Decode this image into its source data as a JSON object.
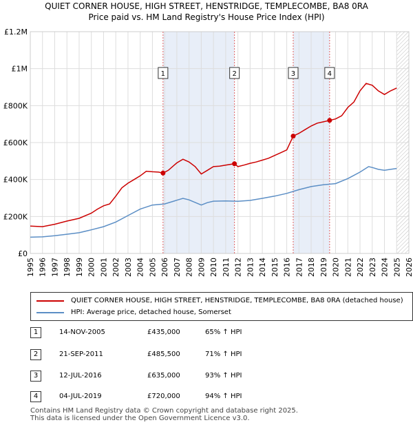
{
  "chart_data": {
    "type": "line",
    "title": "QUIET CORNER HOUSE, HIGH STREET, HENSTRIDGE, TEMPLECOMBE, BA8 0RA",
    "subtitle": "Price paid vs. HM Land Registry's House Price Index (HPI)",
    "xlim": [
      1995,
      2026
    ],
    "ylim": [
      0,
      1200000
    ],
    "x_ticks": [
      "1995",
      "1996",
      "1997",
      "1998",
      "1999",
      "2000",
      "2001",
      "2002",
      "2003",
      "2004",
      "2005",
      "2006",
      "2007",
      "2008",
      "2009",
      "2010",
      "2011",
      "2012",
      "2013",
      "2014",
      "2015",
      "2016",
      "2017",
      "2018",
      "2019",
      "2020",
      "2021",
      "2022",
      "2023",
      "2024",
      "2025",
      "2026"
    ],
    "y_ticks": [
      {
        "value": 0,
        "label": "£0"
      },
      {
        "value": 200000,
        "label": "£200K"
      },
      {
        "value": 400000,
        "label": "£400K"
      },
      {
        "value": 600000,
        "label": "£600K"
      },
      {
        "value": 800000,
        "label": "£800K"
      },
      {
        "value": 1000000,
        "label": "£1M"
      },
      {
        "value": 1200000,
        "label": "£1.2M"
      }
    ],
    "grid": true,
    "forecast_from": 2025.0,
    "series": [
      {
        "name": "QUIET CORNER HOUSE, HIGH STREET, HENSTRIDGE, TEMPLECOMBE, BA8 0RA (detached house)",
        "color": "#cc0000",
        "points": [
          [
            1995.0,
            148000
          ],
          [
            1996.0,
            145000
          ],
          [
            1997.0,
            158000
          ],
          [
            1998.0,
            175000
          ],
          [
            1999.0,
            190000
          ],
          [
            2000.0,
            218000
          ],
          [
            2000.5,
            240000
          ],
          [
            2001.0,
            258000
          ],
          [
            2001.5,
            268000
          ],
          [
            2002.0,
            310000
          ],
          [
            2002.5,
            355000
          ],
          [
            2003.0,
            380000
          ],
          [
            2003.5,
            400000
          ],
          [
            2004.0,
            420000
          ],
          [
            2004.5,
            445000
          ],
          [
            2005.0,
            442000
          ],
          [
            2005.5,
            440000
          ],
          [
            2005.87,
            435000
          ],
          [
            2006.3,
            450000
          ],
          [
            2007.0,
            490000
          ],
          [
            2007.5,
            510000
          ],
          [
            2008.0,
            495000
          ],
          [
            2008.5,
            470000
          ],
          [
            2009.0,
            430000
          ],
          [
            2009.5,
            450000
          ],
          [
            2010.0,
            470000
          ],
          [
            2010.5,
            472000
          ],
          [
            2011.0,
            478000
          ],
          [
            2011.72,
            485500
          ],
          [
            2012.0,
            470000
          ],
          [
            2012.5,
            478000
          ],
          [
            2013.0,
            488000
          ],
          [
            2013.5,
            495000
          ],
          [
            2014.0,
            505000
          ],
          [
            2014.5,
            515000
          ],
          [
            2015.0,
            530000
          ],
          [
            2015.5,
            545000
          ],
          [
            2016.0,
            560000
          ],
          [
            2016.53,
            635000
          ],
          [
            2017.0,
            650000
          ],
          [
            2017.5,
            670000
          ],
          [
            2018.0,
            690000
          ],
          [
            2018.5,
            705000
          ],
          [
            2019.0,
            712000
          ],
          [
            2019.51,
            720000
          ],
          [
            2020.0,
            728000
          ],
          [
            2020.5,
            745000
          ],
          [
            2021.0,
            790000
          ],
          [
            2021.5,
            820000
          ],
          [
            2022.0,
            880000
          ],
          [
            2022.5,
            920000
          ],
          [
            2023.0,
            910000
          ],
          [
            2023.5,
            880000
          ],
          [
            2024.0,
            860000
          ],
          [
            2024.5,
            880000
          ],
          [
            2025.0,
            895000
          ]
        ]
      },
      {
        "name": "HPI: Average price, detached house, Somerset",
        "color": "#5b8ec5",
        "points": [
          [
            1995.0,
            88000
          ],
          [
            1996.0,
            90000
          ],
          [
            1997.0,
            96000
          ],
          [
            1998.0,
            104000
          ],
          [
            1999.0,
            112000
          ],
          [
            2000.0,
            128000
          ],
          [
            2001.0,
            145000
          ],
          [
            2002.0,
            170000
          ],
          [
            2003.0,
            205000
          ],
          [
            2004.0,
            240000
          ],
          [
            2005.0,
            262000
          ],
          [
            2006.0,
            268000
          ],
          [
            2007.0,
            288000
          ],
          [
            2007.5,
            298000
          ],
          [
            2008.0,
            290000
          ],
          [
            2009.0,
            262000
          ],
          [
            2009.5,
            275000
          ],
          [
            2010.0,
            283000
          ],
          [
            2011.0,
            284000
          ],
          [
            2012.0,
            282000
          ],
          [
            2013.0,
            287000
          ],
          [
            2014.0,
            298000
          ],
          [
            2015.0,
            310000
          ],
          [
            2016.0,
            325000
          ],
          [
            2017.0,
            345000
          ],
          [
            2018.0,
            362000
          ],
          [
            2019.0,
            372000
          ],
          [
            2020.0,
            378000
          ],
          [
            2021.0,
            405000
          ],
          [
            2022.0,
            440000
          ],
          [
            2022.7,
            470000
          ],
          [
            2023.0,
            465000
          ],
          [
            2023.5,
            455000
          ],
          [
            2024.0,
            450000
          ],
          [
            2024.5,
            455000
          ],
          [
            2025.0,
            460000
          ]
        ]
      }
    ],
    "sales": [
      {
        "label": "1",
        "x": 2005.87,
        "price": 435000
      },
      {
        "label": "2",
        "x": 2011.72,
        "price": 485500
      },
      {
        "label": "3",
        "x": 2016.53,
        "price": 635000
      },
      {
        "label": "4",
        "x": 2019.51,
        "price": 720000
      }
    ],
    "shaded_spans": [
      [
        2005.87,
        2011.72
      ],
      [
        2016.53,
        2019.51
      ]
    ]
  },
  "legend": {
    "property_label": "QUIET CORNER HOUSE, HIGH STREET, HENSTRIDGE, TEMPLECOMBE, BA8 0RA (detached house)",
    "hpi_label": "HPI: Average price, detached house, Somerset"
  },
  "table": [
    {
      "num": "1",
      "date": "14-NOV-2005",
      "price": "£435,000",
      "hpi": "65% ↑ HPI"
    },
    {
      "num": "2",
      "date": "21-SEP-2011",
      "price": "£485,500",
      "hpi": "71% ↑ HPI"
    },
    {
      "num": "3",
      "date": "12-JUL-2016",
      "price": "£635,000",
      "hpi": "93% ↑ HPI"
    },
    {
      "num": "4",
      "date": "04-JUL-2019",
      "price": "£720,000",
      "hpi": "94% ↑ HPI"
    }
  ],
  "footer": {
    "line1": "Contains HM Land Registry data © Crown copyright and database right 2025.",
    "line2": "This data is licensed under the Open Government Licence v3.0."
  },
  "colors": {
    "property": "#cc0000",
    "hpi": "#5b8ec5",
    "shade": "#e8eef8",
    "grid": "#dddddd"
  }
}
